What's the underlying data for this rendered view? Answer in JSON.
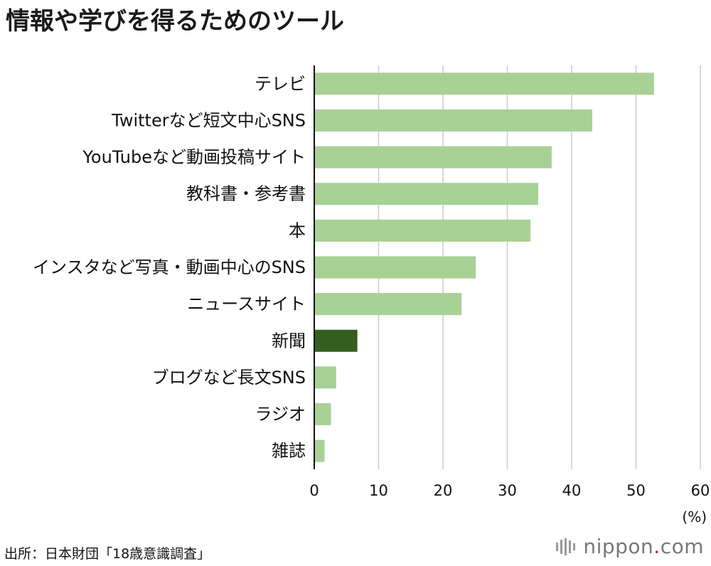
{
  "chart_data": {
    "type": "bar",
    "orientation": "horizontal",
    "title": "情報や学びを得るためのツール",
    "categories": [
      "テレビ",
      "Twitterなど短文中心SNS",
      "YouTubeなど動画投稿サイト",
      "教科書・参考書",
      "本",
      "インスタなど写真・動画中心のSNS",
      "ニュースサイト",
      "新聞",
      "ブログなど長文SNS",
      "ラジオ",
      "雑誌"
    ],
    "values": [
      52.8,
      43.2,
      36.9,
      34.8,
      33.6,
      25.1,
      22.9,
      6.7,
      3.4,
      2.6,
      1.6
    ],
    "highlight_index": 7,
    "xlim": [
      0,
      60
    ],
    "xticks": [
      0,
      10,
      20,
      30,
      40,
      50,
      60
    ],
    "unit": "(%)",
    "grid": true,
    "colors": {
      "bar": "#a8d196",
      "highlight": "#345f1e",
      "grid": "#cccccc",
      "axis": "#111111"
    }
  },
  "source": "出所：日本財団「18歳意識調査」",
  "brand": {
    "name": "nippon",
    "dot": ".",
    "tld": "com"
  }
}
